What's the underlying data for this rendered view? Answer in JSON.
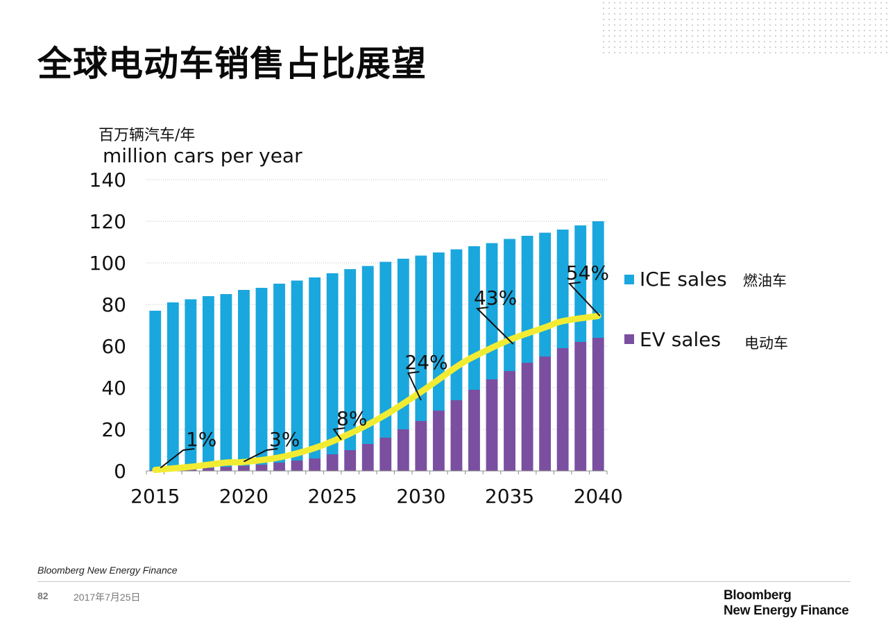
{
  "page": {
    "title": "全球电动车销售占比展望",
    "source": "Bloomberg New Energy Finance",
    "page_number": "82",
    "date": "2017年7月25日",
    "logo_line1": "Bloomberg",
    "logo_line2": "New Energy Finance"
  },
  "colors": {
    "ice": "#1aa7dd",
    "ev": "#7a4fa0",
    "share_line": "#f1ec33",
    "grid": "#bdbdbd"
  },
  "chart_data": {
    "type": "bar",
    "stacked": true,
    "title": "全球电动车销售占比展望",
    "ylabel_cn": "百万辆汽车/年",
    "ylabel": "million cars per year",
    "ylim": [
      0,
      140
    ],
    "yticks": [
      0,
      20,
      40,
      60,
      80,
      100,
      120,
      140
    ],
    "xticks": [
      2015,
      2020,
      2025,
      2030,
      2035,
      2040
    ],
    "categories": [
      2015,
      2016,
      2017,
      2018,
      2019,
      2020,
      2021,
      2022,
      2023,
      2024,
      2025,
      2026,
      2027,
      2028,
      2029,
      2030,
      2031,
      2032,
      2033,
      2034,
      2035,
      2036,
      2037,
      2038,
      2039,
      2040
    ],
    "grid": true,
    "legend_position": "right",
    "series": [
      {
        "name": "EV sales",
        "name_cn": "电动车",
        "values": [
          0.5,
          0.8,
          1.2,
          1.5,
          2,
          2.5,
          3,
          4,
          5,
          6,
          8,
          10,
          13,
          16,
          20,
          24,
          29,
          34,
          39,
          44,
          48,
          52,
          55,
          59,
          62,
          64
        ]
      },
      {
        "name": "ICE sales",
        "name_cn": "燃油车",
        "values": [
          76.5,
          80.2,
          81.3,
          82.5,
          83,
          84.5,
          85,
          86,
          86.5,
          87,
          87,
          87,
          85.5,
          84.5,
          82,
          79.5,
          76,
          72.5,
          69,
          65.5,
          63.5,
          61,
          59.5,
          57,
          56,
          56
        ]
      }
    ],
    "ev_share_line": {
      "x": [
        2015,
        2017,
        2019,
        2020,
        2022,
        2024,
        2026,
        2028,
        2030,
        2032,
        2033,
        2035,
        2037,
        2038,
        2040
      ],
      "y": [
        0.5,
        2,
        4,
        4.3,
        6.5,
        11,
        18,
        27,
        38,
        50,
        55,
        63,
        69,
        72,
        74.5
      ]
    },
    "annotations": [
      {
        "text": "1%",
        "point": [
          2015.3,
          1.5
        ],
        "label": [
          2017.6,
          12
        ]
      },
      {
        "text": "3%",
        "point": [
          2020.0,
          4.5
        ],
        "label": [
          2022.3,
          12
        ]
      },
      {
        "text": "8%",
        "point": [
          2025.5,
          15
        ],
        "label": [
          2026.1,
          22
        ]
      },
      {
        "text": "24%",
        "point": [
          2030.0,
          34
        ],
        "label": [
          2030.3,
          49
        ]
      },
      {
        "text": "43%",
        "point": [
          2035.2,
          61
        ],
        "label": [
          2034.2,
          80
        ]
      },
      {
        "text": "54%",
        "point": [
          2040.1,
          74.5
        ],
        "label": [
          2039.4,
          92
        ]
      }
    ]
  }
}
